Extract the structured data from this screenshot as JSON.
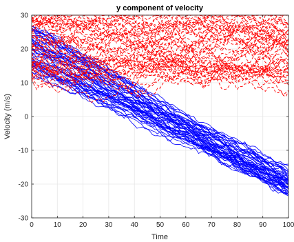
{
  "chart_data": {
    "type": "line",
    "title": "y component of velocity",
    "xlabel": "Time",
    "ylabel": "Velocity (m/s)",
    "xlim": [
      0,
      100
    ],
    "ylim": [
      -30,
      30
    ],
    "xticks": [
      0,
      10,
      20,
      30,
      40,
      50,
      60,
      70,
      80,
      90,
      100
    ],
    "yticks": [
      -30,
      -20,
      -10,
      0,
      10,
      20,
      30
    ],
    "grid": true,
    "series": [
      {
        "style": "solid",
        "color": "#0000ff",
        "trend": {
          "start": [
            13,
            27
          ],
          "end": [
            -23,
            -17
          ]
        },
        "count": 50
      },
      {
        "style": "dashed",
        "color": "#ff0000",
        "trend": {
          "start": [
            11,
            29
          ],
          "end": [
            11,
            29
          ]
        },
        "count": 50
      }
    ]
  }
}
